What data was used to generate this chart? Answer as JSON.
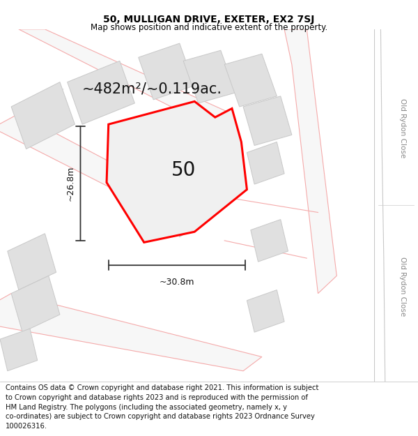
{
  "title": "50, MULLIGAN DRIVE, EXETER, EX2 7SJ",
  "subtitle": "Map shows position and indicative extent of the property.",
  "area_text": "~482m²/~0.119ac.",
  "label_50": "50",
  "dim_height": "~26.8m",
  "dim_width": "~30.8m",
  "road_label_1": "Old Rydon Close",
  "road_label_2": "Old Rydon Close",
  "footer_lines": [
    "Contains OS data © Crown copyright and database right 2021. This information is subject",
    "to Crown copyright and database rights 2023 and is reproduced with the permission of",
    "HM Land Registry. The polygons (including the associated geometry, namely x, y",
    "co-ordinates) are subject to Crown copyright and database rights 2023 Ordnance Survey",
    "100026316."
  ],
  "map_bg": "#f7f7f7",
  "plot_outline_color": "#ff0000",
  "plot_fill_color": "#f0f0f0",
  "building_fill": "#e0e0e0",
  "building_edge": "#c8c8c8",
  "road_line_color": "#f5aaaa",
  "road_fill_color": "#f9f9f9",
  "dim_line_color": "#333333",
  "right_strip_color": "#e8e8e8",
  "right_road_line": "#c8c8c8",
  "title_fontsize": 10,
  "subtitle_fontsize": 8.5,
  "area_fontsize": 15,
  "label_fontsize": 20,
  "footer_fontsize": 7.2,
  "road_label_fontsize": 7.5
}
